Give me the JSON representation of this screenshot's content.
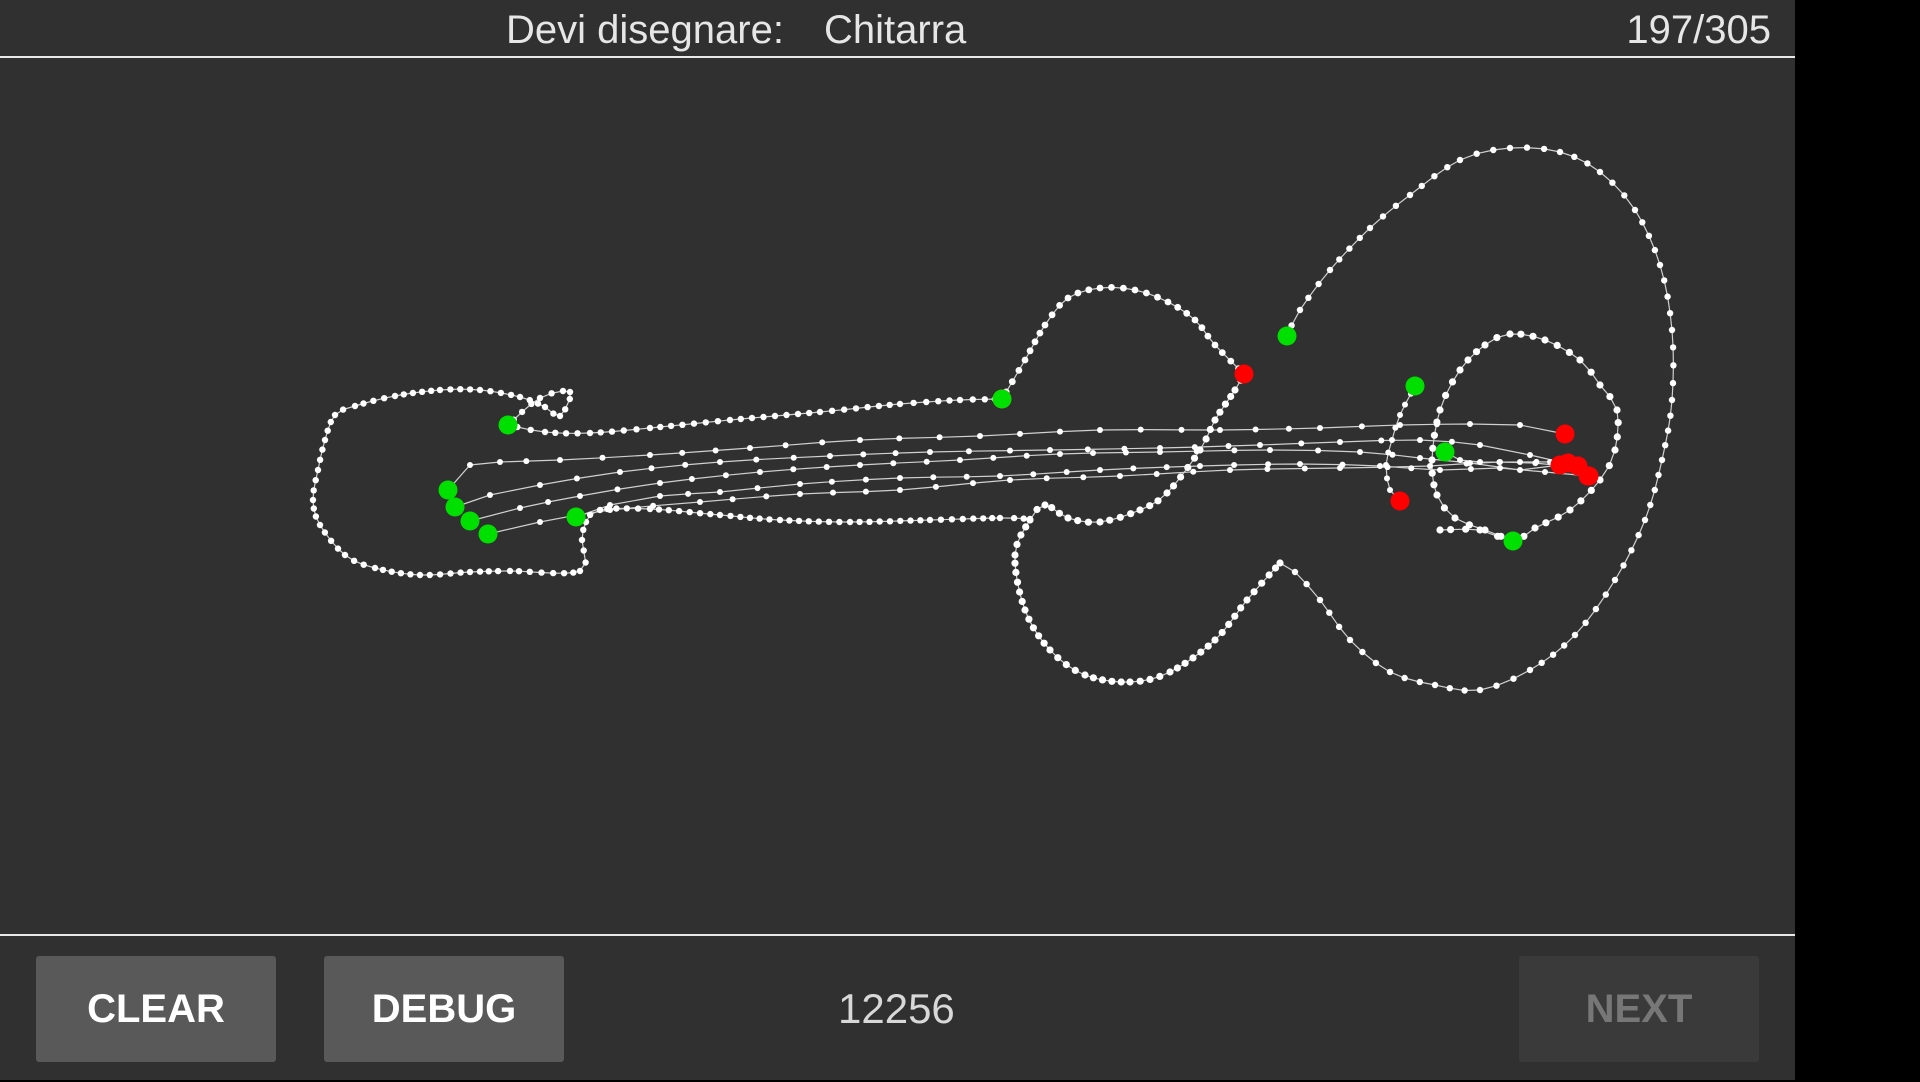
{
  "header": {
    "prompt_label": "Devi disegnare:",
    "target_word": "Chitarra",
    "progress": "197/305"
  },
  "footer": {
    "clear_label": "CLEAR",
    "debug_label": "DEBUG",
    "score": "12256",
    "next_label": "NEXT",
    "next_enabled": false
  },
  "canvas": {
    "background": "#303030",
    "stroke_point_color": "#ffffff",
    "stroke_start_color": "#00e000",
    "stroke_end_color": "#ff0000",
    "connector_line_color": "#d0d0d0"
  }
}
